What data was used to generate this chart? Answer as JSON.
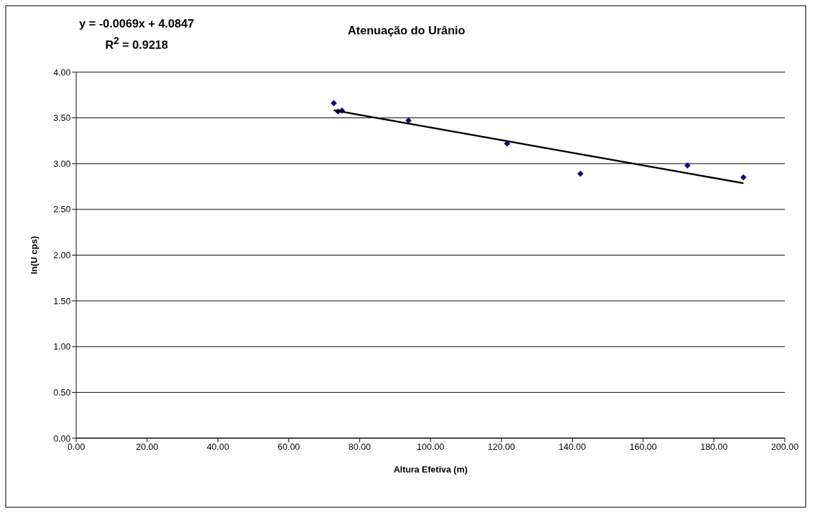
{
  "chart_data": {
    "type": "scatter",
    "title": "Atenuação do Urânio",
    "xlabel": "Altura Efetiva (m)",
    "ylabel": "ln(U cps)",
    "annotations": [
      "y = -0.0069x + 4.0847",
      "R$^{2}$ = 0.9218"
    ],
    "series": [
      {
        "type": "scatter",
        "color": "#000080",
        "marker": "diamond",
        "x": [
          72.7,
          73.9,
          75.0,
          93.8,
          121.6,
          142.3,
          172.5,
          188.3
        ],
        "values": [
          3.66,
          3.57,
          3.58,
          3.47,
          3.22,
          2.89,
          2.98,
          2.85
        ]
      },
      {
        "type": "line",
        "color": "#000000",
        "marker": "none",
        "x": [
          72.7,
          188.3
        ],
        "values": [
          3.583,
          2.786
        ]
      }
    ],
    "xlim": [
      0,
      200
    ],
    "xticks": [
      {
        "value": 0,
        "label": "0.00"
      },
      {
        "value": 20,
        "label": "20.00"
      },
      {
        "value": 40,
        "label": "40.00"
      },
      {
        "value": 60,
        "label": "60.00"
      },
      {
        "value": 80,
        "label": "80.00"
      },
      {
        "value": 100,
        "label": "100.00"
      },
      {
        "value": 120,
        "label": "120.00"
      },
      {
        "value": 140,
        "label": "140.00"
      },
      {
        "value": 160,
        "label": "160.00"
      },
      {
        "value": 180,
        "label": "180.00"
      },
      {
        "value": 200,
        "label": "200.00"
      }
    ],
    "ylim": [
      0,
      4
    ],
    "yticks": [
      {
        "value": 0,
        "label": "0.00"
      },
      {
        "value": 0.5,
        "label": "0.50"
      },
      {
        "value": 1,
        "label": "1.00"
      },
      {
        "value": 1.5,
        "label": "1.50"
      },
      {
        "value": 2,
        "label": "2.00"
      },
      {
        "value": 2.5,
        "label": "2.50"
      },
      {
        "value": 3,
        "label": "3.00"
      },
      {
        "value": 3.5,
        "label": "3.50"
      },
      {
        "value": 4,
        "label": "4.00"
      }
    ],
    "grid": "y",
    "legend": false
  }
}
